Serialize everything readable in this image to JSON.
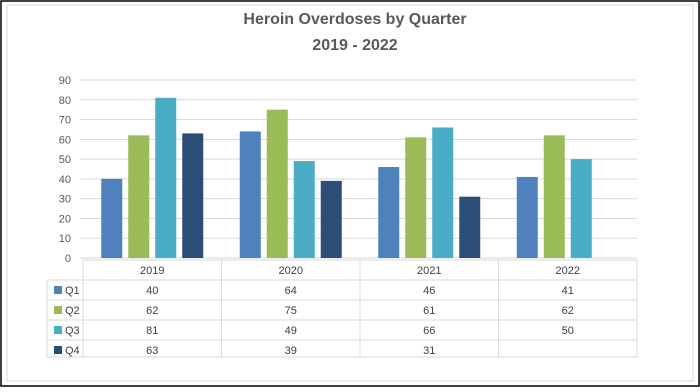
{
  "chart_data": {
    "type": "bar",
    "title": "Heroin Overdoses by Quarter",
    "subtitle": "2019 - 2022",
    "categories": [
      "2019",
      "2020",
      "2021",
      "2022"
    ],
    "yticks": [
      "0",
      "10",
      "20",
      "30",
      "40",
      "50",
      "60",
      "70",
      "80",
      "90"
    ],
    "ylim": [
      0,
      90
    ],
    "grid": true,
    "legend": "data-table",
    "series": [
      {
        "name": "Q1",
        "color": "#4F81BD",
        "values": [
          40,
          64,
          46,
          41
        ]
      },
      {
        "name": "Q2",
        "color": "#9BBB59",
        "values": [
          62,
          75,
          61,
          62
        ]
      },
      {
        "name": "Q3",
        "color": "#4BACC6",
        "values": [
          81,
          49,
          66,
          50
        ]
      },
      {
        "name": "Q4",
        "color": "#2C4D75",
        "values": [
          63,
          39,
          31,
          null
        ]
      }
    ]
  }
}
